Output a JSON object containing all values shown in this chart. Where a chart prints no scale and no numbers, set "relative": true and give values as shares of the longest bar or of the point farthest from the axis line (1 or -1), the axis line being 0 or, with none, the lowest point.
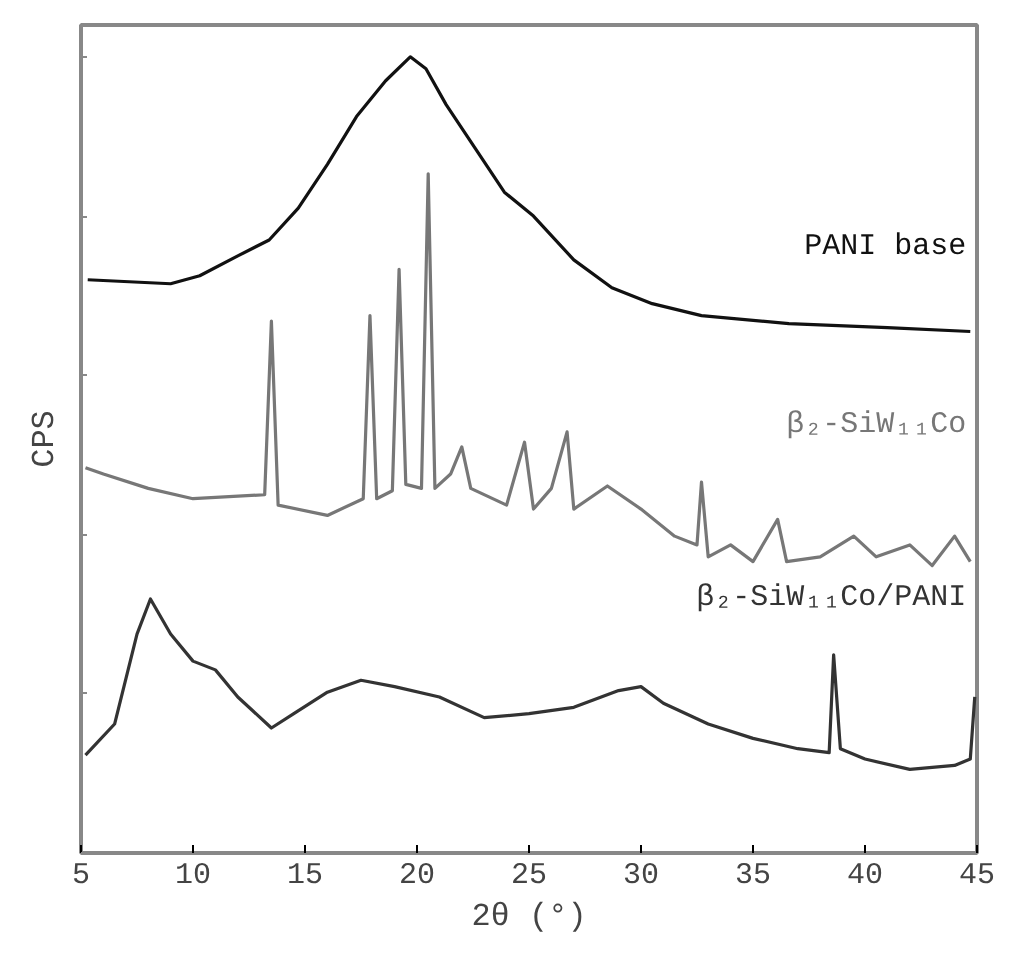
{
  "chart_data": {
    "type": "line",
    "relative": true,
    "xlabel": "2θ (°)",
    "ylabel": "CPS",
    "xlim": [
      5,
      45
    ],
    "xticks": [
      5,
      10,
      15,
      20,
      25,
      30,
      35,
      40,
      45
    ],
    "tick_labels": "x",
    "grid": false,
    "marker": "none",
    "line_style": "solid",
    "series": [
      {
        "name": "PANI base",
        "color": "#111111",
        "x": [
          5.3,
          9.0,
          10.3,
          12.0,
          13.4,
          14.7,
          16.0,
          17.3,
          18.6,
          19.7,
          20.4,
          21.3,
          22.6,
          23.9,
          25.2,
          27.0,
          28.7,
          30.5,
          32.7,
          36.6,
          41.0,
          44.7
        ],
        "values": [
          0.72,
          0.715,
          0.725,
          0.75,
          0.77,
          0.81,
          0.865,
          0.925,
          0.97,
          1.0,
          0.985,
          0.94,
          0.885,
          0.83,
          0.8,
          0.745,
          0.71,
          0.69,
          0.675,
          0.665,
          0.66,
          0.655
        ]
      },
      {
        "name": "β₂-SiW₁₁Co",
        "color": "#777777",
        "x": [
          5.2,
          6,
          8,
          10,
          13.2,
          13.5,
          13.8,
          16,
          17.6,
          17.9,
          18.2,
          18.9,
          19.2,
          19.5,
          20.2,
          20.5,
          20.8,
          21.5,
          22.0,
          22.4,
          24,
          24.8,
          25.2,
          26.0,
          26.7,
          27.0,
          28.5,
          30,
          31.5,
          32.5,
          32.7,
          33,
          34,
          35,
          36.1,
          36.5,
          38,
          39.5,
          40.5,
          42,
          43,
          44,
          44.7
        ],
        "values": [
          0.484,
          0.476,
          0.458,
          0.445,
          0.45,
          0.668,
          0.437,
          0.424,
          0.445,
          0.675,
          0.445,
          0.455,
          0.733,
          0.463,
          0.458,
          0.853,
          0.458,
          0.476,
          0.51,
          0.458,
          0.437,
          0.516,
          0.432,
          0.458,
          0.529,
          0.432,
          0.461,
          0.432,
          0.398,
          0.387,
          0.466,
          0.372,
          0.387,
          0.366,
          0.419,
          0.366,
          0.372,
          0.398,
          0.372,
          0.387,
          0.361,
          0.398,
          0.366
        ]
      },
      {
        "name": "β₂-SiW₁₁Co/PANI",
        "color": "#333333",
        "x": [
          5.2,
          6.5,
          7.5,
          8.1,
          9,
          10,
          11,
          12,
          13.5,
          14.5,
          16,
          17.5,
          19,
          21,
          23,
          25,
          27,
          29,
          30,
          31,
          33,
          35,
          37,
          38.4,
          38.6,
          38.9,
          40,
          42,
          44,
          44.7,
          44.9
        ],
        "values": [
          0.123,
          0.162,
          0.275,
          0.319,
          0.275,
          0.241,
          0.23,
          0.196,
          0.157,
          0.175,
          0.202,
          0.217,
          0.209,
          0.196,
          0.17,
          0.175,
          0.183,
          0.204,
          0.209,
          0.188,
          0.162,
          0.144,
          0.131,
          0.126,
          0.249,
          0.131,
          0.118,
          0.105,
          0.11,
          0.118,
          0.196
        ]
      }
    ]
  }
}
